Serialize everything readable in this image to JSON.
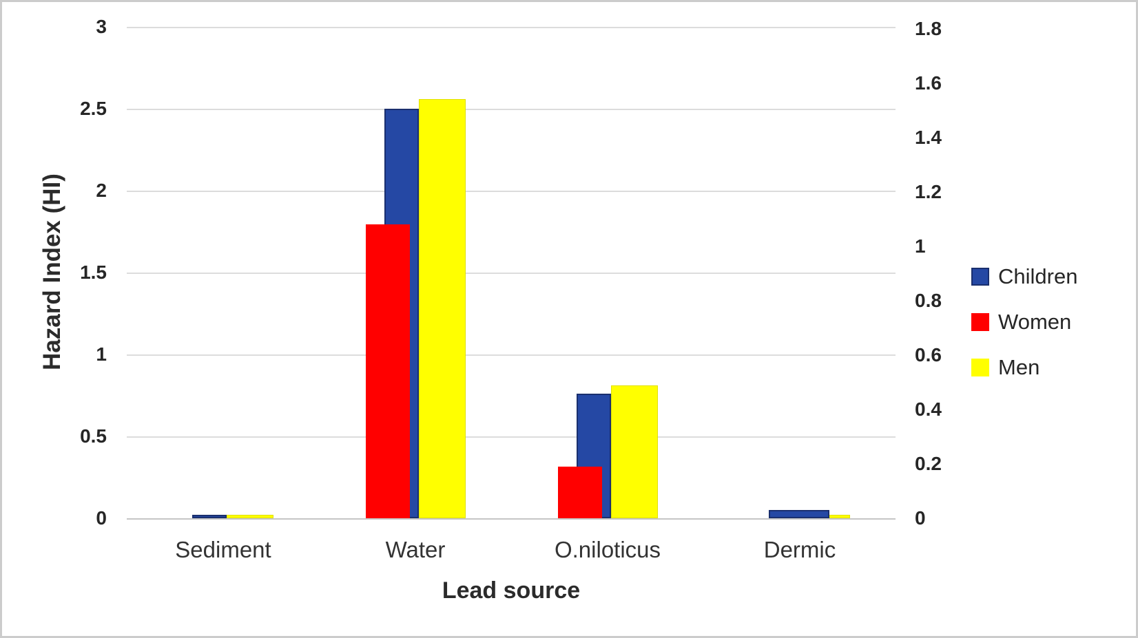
{
  "figure": {
    "background": "#ffffff",
    "frame_color": "#cccccc",
    "gridline_color": "#dcdcdc"
  },
  "chart_data": {
    "type": "bar",
    "title": "",
    "xlabel": "Lead source",
    "ylabel_left": "Hazard Index (HI)",
    "categories": [
      "Sediment",
      "Water",
      "O.niloticus",
      "Dermic"
    ],
    "series": [
      {
        "name": "Children",
        "color": "#2548A4",
        "border_color": "#1A2F6E",
        "axis": "left",
        "values": [
          0.02,
          2.5,
          0.76,
          0.05
        ]
      },
      {
        "name": "Women",
        "color": "#FF0000",
        "border_color": "#E00000",
        "axis": "right",
        "values": [
          0,
          1.08,
          0.19,
          0
        ]
      },
      {
        "name": "Men",
        "color": "#FFFF00",
        "border_color": "#E0E000",
        "axis": "left",
        "values": [
          0.02,
          2.56,
          0.81,
          0.02
        ]
      }
    ],
    "left_axis": {
      "min": 0,
      "max": 3,
      "step": 0.5,
      "ticks": [
        "3",
        "2.5",
        "2",
        "1.5",
        "1",
        "0.5",
        "0"
      ]
    },
    "right_axis": {
      "min": 0,
      "max": 1.8,
      "step": 0.2,
      "ticks": [
        "1.8",
        "1.6",
        "1.4",
        "1.2",
        "1",
        "0.8",
        "0.6",
        "0.4",
        "0.2",
        "0"
      ]
    },
    "grid": true,
    "legend": {
      "position": "right",
      "entries": [
        "Children",
        "Women",
        "Men"
      ]
    }
  }
}
